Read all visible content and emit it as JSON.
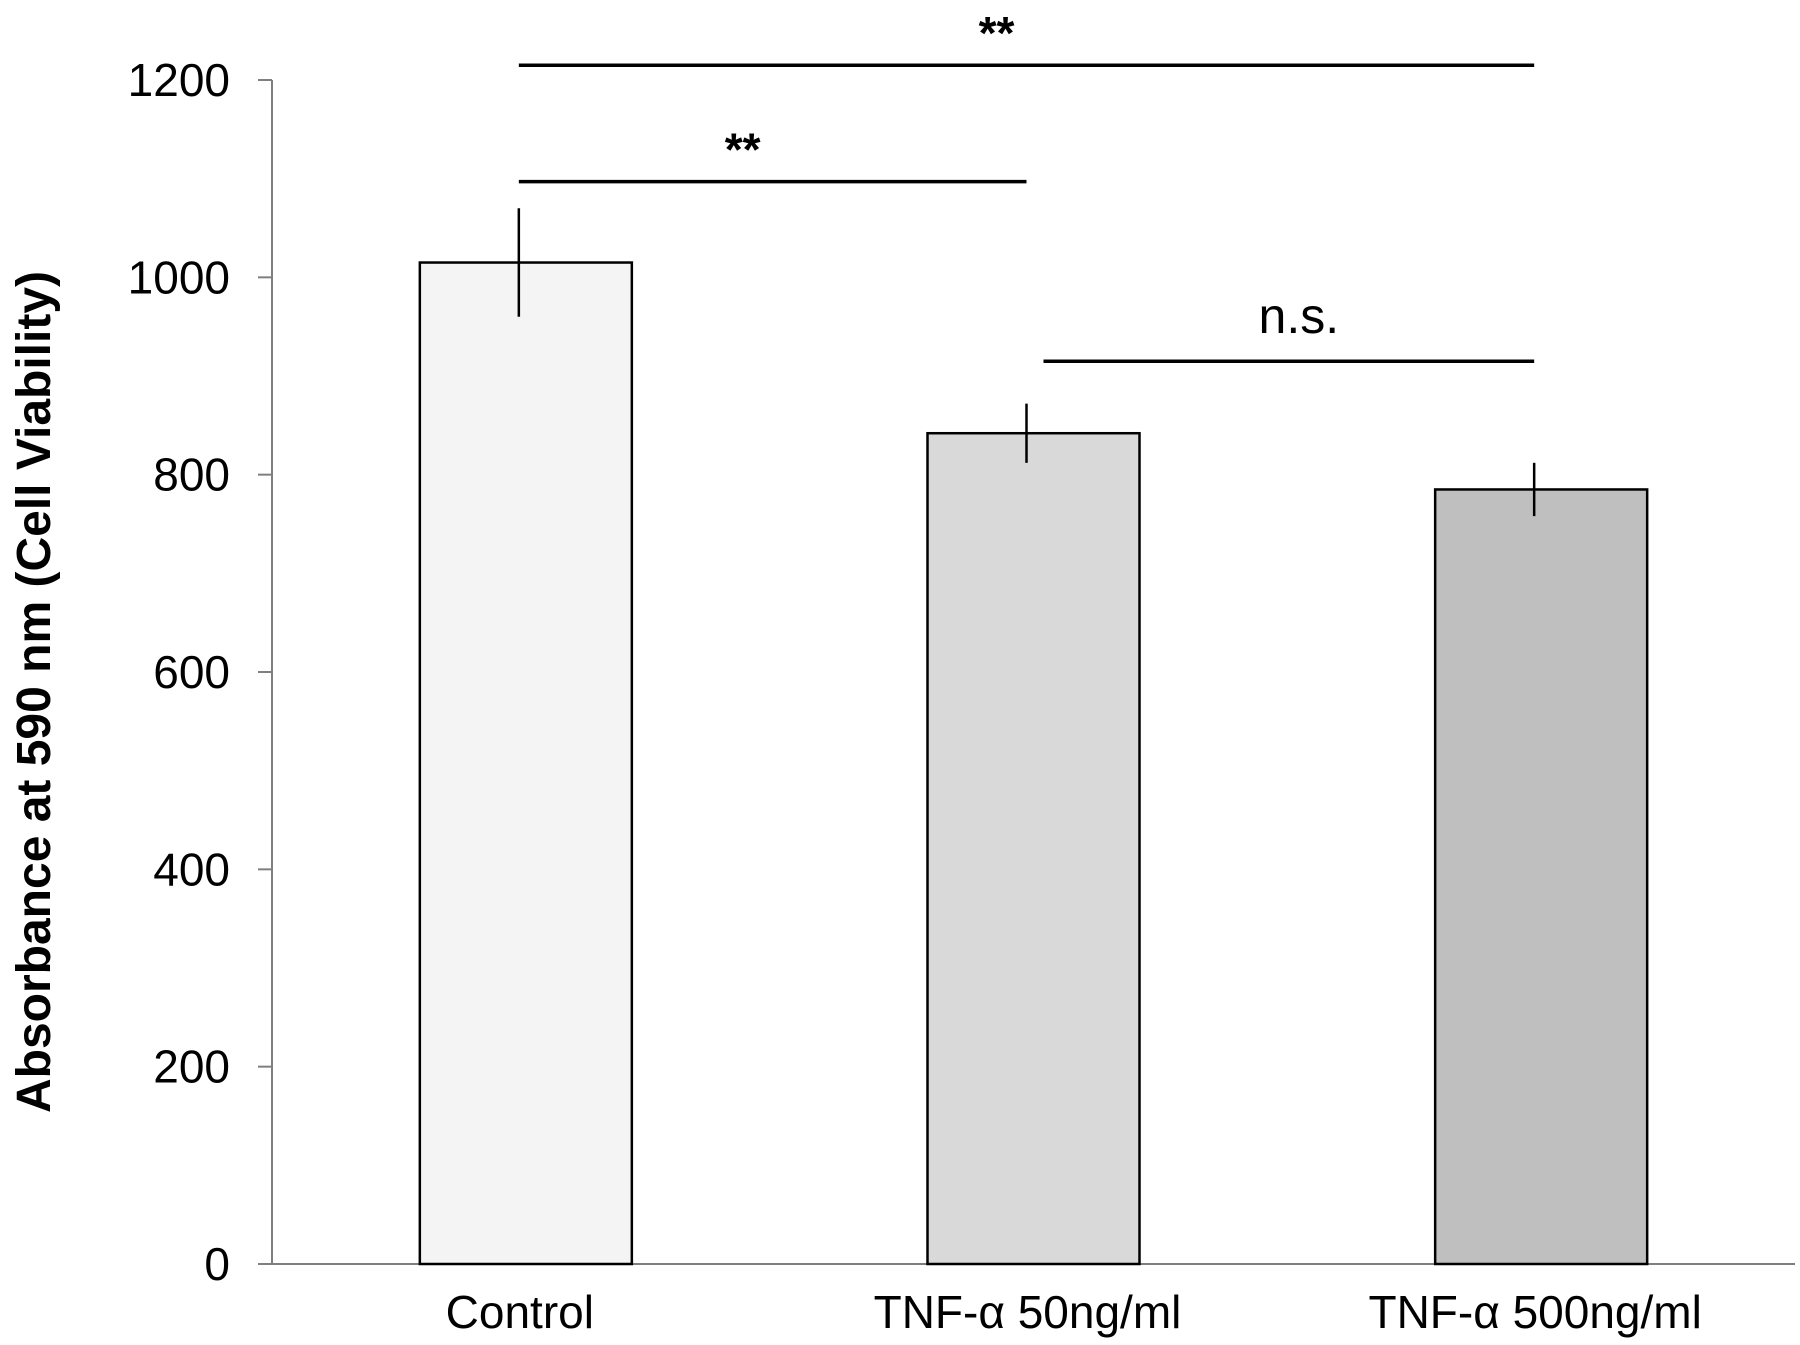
{
  "chart_data": {
    "type": "bar",
    "categories": [
      "Control",
      "TNF-α 50ng/ml",
      "TNF-α 500ng/ml"
    ],
    "values": [
      1015,
      842,
      785
    ],
    "errors": [
      55,
      30,
      27
    ],
    "bar_colors": [
      "#f4f4f4",
      "#d9d9d9",
      "#bfbfbf"
    ],
    "title": "",
    "xlabel": "",
    "ylabel": "Absorbance at 590 nm  (Cell Viability)",
    "ylim": [
      0,
      1200
    ],
    "yticks": [
      0,
      200,
      400,
      600,
      800,
      1000,
      1200
    ],
    "grid": false,
    "legend": "none",
    "annotations": [
      {
        "text": "**",
        "from": 0,
        "to": 2,
        "y": 1215
      },
      {
        "text": "**",
        "from": 0,
        "to": 1,
        "y": 1097
      },
      {
        "text": "n.s.",
        "from": 1,
        "to": 2,
        "y": 915
      }
    ]
  }
}
